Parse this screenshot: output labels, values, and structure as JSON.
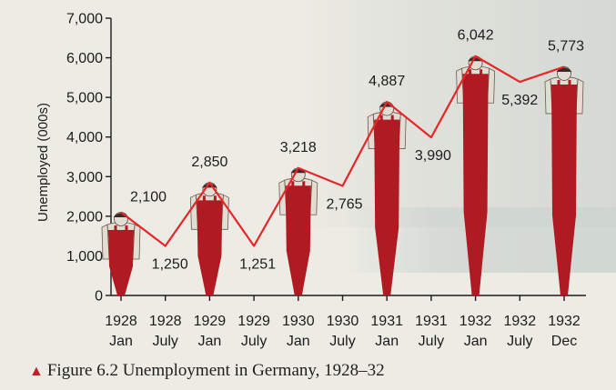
{
  "caption": {
    "marker": "▲",
    "text": "Figure 6.2 Unemployment in Germany, 1928–32"
  },
  "colors": {
    "line": "#e8262a",
    "figure_fill": "#b01a22",
    "figure_head": "#e2ddd2",
    "axis": "#1c1c1c"
  },
  "chart_data": {
    "type": "line",
    "ylabel": "Unemployed (000s)",
    "ylim": [
      0,
      7000
    ],
    "yticks": [
      "0",
      "1,000",
      "2,000",
      "3,000",
      "4,000",
      "5,000",
      "6,000",
      "7,000"
    ],
    "categories": [
      [
        "1928",
        "Jan"
      ],
      [
        "1928",
        "July"
      ],
      [
        "1929",
        "Jan"
      ],
      [
        "1929",
        "July"
      ],
      [
        "1930",
        "Jan"
      ],
      [
        "1930",
        "July"
      ],
      [
        "1931",
        "Jan"
      ],
      [
        "1931",
        "July"
      ],
      [
        "1932",
        "Jan"
      ],
      [
        "1932",
        "July"
      ],
      [
        "1932",
        "Dec"
      ]
    ],
    "series": [
      {
        "values": [
          2100,
          1250,
          2850,
          1251,
          3218,
          2765,
          4887,
          3990,
          6042,
          5392,
          5773
        ]
      }
    ],
    "point_labels": [
      "2,100",
      "1,250",
      "2,850",
      "1,251",
      "3,218",
      "2,765",
      "4,887",
      "3,990",
      "6,042",
      "5,392",
      "5,773"
    ],
    "figure_pictograms_at": [
      "1928 Jan",
      "1929 Jan",
      "1930 Jan",
      "1931 Jan",
      "1932 Jan",
      "1932 Dec"
    ],
    "grid": false
  }
}
